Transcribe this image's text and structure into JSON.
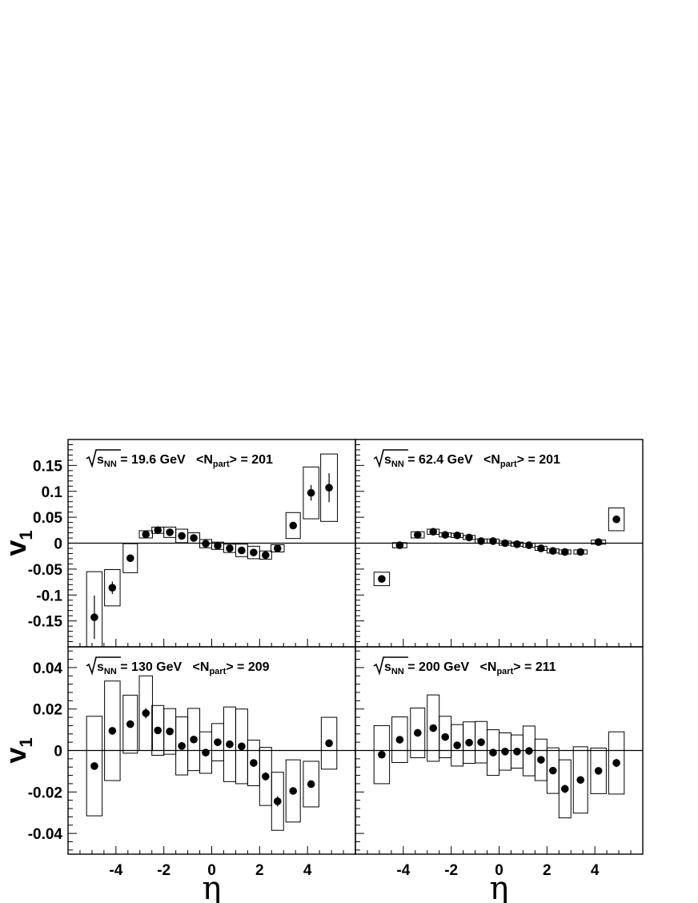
{
  "chart_data": [
    {
      "type": "scatter",
      "panel": "top-left",
      "energy_label": "= 19.6 GeV",
      "sqrt_label": "s",
      "sqrt_sub": "NN",
      "npart_open": "<N",
      "npart_sub": "part",
      "npart_close": "> = 201",
      "ylabel": "v",
      "ylabel_sub": "1",
      "xlabel": "",
      "ylim": [
        -0.2,
        0.2
      ],
      "yticks": [
        -0.15,
        -0.1,
        -0.05,
        0,
        0.05,
        0.1,
        0.15
      ],
      "ytick_labels": [
        "-0.15",
        "-0.1",
        "-0.05",
        "0",
        "0.05",
        "0.1",
        "0.15"
      ],
      "points": [
        {
          "x": -4.9,
          "y": -0.143,
          "err": 0.042,
          "sys": 0.088,
          "bw": 0.65
        },
        {
          "x": -4.15,
          "y": -0.086,
          "err": 0.012,
          "sys": 0.035,
          "bw": 0.65
        },
        {
          "x": -3.4,
          "y": -0.029,
          "err": 0.006,
          "sys": 0.028,
          "bw": 0.6
        },
        {
          "x": -2.75,
          "y": 0.017,
          "err": 0.003,
          "sys": 0.007,
          "bw": 0.55
        },
        {
          "x": -2.25,
          "y": 0.025,
          "err": 0.002,
          "sys": 0.006,
          "bw": 0.5
        },
        {
          "x": -1.75,
          "y": 0.021,
          "err": 0.002,
          "sys": 0.01,
          "bw": 0.5
        },
        {
          "x": -1.25,
          "y": 0.014,
          "err": 0.002,
          "sys": 0.013,
          "bw": 0.5
        },
        {
          "x": -0.75,
          "y": 0.01,
          "err": 0.002,
          "sys": 0.01,
          "bw": 0.5
        },
        {
          "x": -0.25,
          "y": -0.001,
          "err": 0.002,
          "sys": 0.008,
          "bw": 0.5
        },
        {
          "x": 0.25,
          "y": -0.005,
          "err": 0.002,
          "sys": 0.007,
          "bw": 0.5
        },
        {
          "x": 0.75,
          "y": -0.01,
          "err": 0.002,
          "sys": 0.008,
          "bw": 0.5
        },
        {
          "x": 1.25,
          "y": -0.014,
          "err": 0.002,
          "sys": 0.012,
          "bw": 0.5
        },
        {
          "x": 1.75,
          "y": -0.018,
          "err": 0.002,
          "sys": 0.012,
          "bw": 0.5
        },
        {
          "x": 2.25,
          "y": -0.023,
          "err": 0.002,
          "sys": 0.008,
          "bw": 0.5
        },
        {
          "x": 2.75,
          "y": -0.01,
          "err": 0.003,
          "sys": 0.007,
          "bw": 0.55
        },
        {
          "x": 3.4,
          "y": 0.034,
          "err": 0.006,
          "sys": 0.025,
          "bw": 0.6
        },
        {
          "x": 4.15,
          "y": 0.097,
          "err": 0.015,
          "sys": 0.05,
          "bw": 0.65
        },
        {
          "x": 4.9,
          "y": 0.107,
          "err": 0.028,
          "sys": 0.065,
          "bw": 0.7
        }
      ]
    },
    {
      "type": "scatter",
      "panel": "top-right",
      "energy_label": "= 62.4 GeV",
      "sqrt_label": "s",
      "sqrt_sub": "NN",
      "npart_open": "<N",
      "npart_sub": "part",
      "npart_close": "> = 201",
      "ylabel": "",
      "ylabel_sub": "",
      "xlabel": "",
      "ylim": [
        -0.2,
        0.2
      ],
      "yticks": [
        -0.15,
        -0.1,
        -0.05,
        0,
        0.05,
        0.1,
        0.15
      ],
      "ytick_labels": [],
      "points": [
        {
          "x": -4.9,
          "y": -0.069,
          "err": 0.006,
          "sys": 0.013,
          "bw": 0.65
        },
        {
          "x": -4.15,
          "y": -0.004,
          "err": 0.002,
          "sys": 0.005,
          "bw": 0.6
        },
        {
          "x": -3.4,
          "y": 0.016,
          "err": 0.002,
          "sys": 0.006,
          "bw": 0.55
        },
        {
          "x": -2.75,
          "y": 0.022,
          "err": 0.002,
          "sys": 0.005,
          "bw": 0.5
        },
        {
          "x": -2.25,
          "y": 0.016,
          "err": 0.002,
          "sys": 0.004,
          "bw": 0.5
        },
        {
          "x": -1.75,
          "y": 0.015,
          "err": 0.002,
          "sys": 0.004,
          "bw": 0.5
        },
        {
          "x": -1.25,
          "y": 0.011,
          "err": 0.002,
          "sys": 0.004,
          "bw": 0.5
        },
        {
          "x": -0.75,
          "y": 0.004,
          "err": 0.002,
          "sys": 0.004,
          "bw": 0.5
        },
        {
          "x": -0.25,
          "y": 0.004,
          "err": 0.002,
          "sys": 0.004,
          "bw": 0.5
        },
        {
          "x": 0.25,
          "y": 0.0,
          "err": 0.002,
          "sys": 0.004,
          "bw": 0.5
        },
        {
          "x": 0.75,
          "y": -0.002,
          "err": 0.002,
          "sys": 0.004,
          "bw": 0.5
        },
        {
          "x": 1.25,
          "y": -0.004,
          "err": 0.002,
          "sys": 0.004,
          "bw": 0.5
        },
        {
          "x": 1.75,
          "y": -0.01,
          "err": 0.002,
          "sys": 0.004,
          "bw": 0.5
        },
        {
          "x": 2.25,
          "y": -0.015,
          "err": 0.002,
          "sys": 0.004,
          "bw": 0.5
        },
        {
          "x": 2.75,
          "y": -0.017,
          "err": 0.002,
          "sys": 0.004,
          "bw": 0.5
        },
        {
          "x": 3.4,
          "y": -0.017,
          "err": 0.002,
          "sys": 0.004,
          "bw": 0.55
        },
        {
          "x": 4.15,
          "y": 0.002,
          "err": 0.002,
          "sys": 0.004,
          "bw": 0.6
        },
        {
          "x": 4.9,
          "y": 0.046,
          "err": 0.004,
          "sys": 0.022,
          "bw": 0.65
        }
      ]
    },
    {
      "type": "scatter",
      "panel": "bottom-left",
      "energy_label": "= 130 GeV",
      "sqrt_label": "s",
      "sqrt_sub": "NN",
      "npart_open": "<N",
      "npart_sub": "part",
      "npart_close": "> = 209",
      "ylabel": "v",
      "ylabel_sub": "1",
      "xlabel": "η",
      "ylim": [
        -0.05,
        0.05
      ],
      "yticks": [
        -0.04,
        -0.02,
        0,
        0.02,
        0.04
      ],
      "ytick_labels": [
        "-0.04",
        "-0.02",
        "0",
        "0.02",
        "0.04"
      ],
      "xticks": [
        -4,
        -2,
        0,
        2,
        4
      ],
      "xtick_labels": [
        "-4",
        "-2",
        "0",
        "2",
        "4"
      ],
      "points": [
        {
          "x": -4.9,
          "y": -0.0075,
          "err": 0.0015,
          "sys": 0.024,
          "bw": 0.65
        },
        {
          "x": -4.15,
          "y": 0.0095,
          "err": 0.0015,
          "sys": 0.024,
          "bw": 0.65
        },
        {
          "x": -3.4,
          "y": 0.0127,
          "err": 0.0015,
          "sys": 0.014,
          "bw": 0.6
        },
        {
          "x": -2.75,
          "y": 0.018,
          "err": 0.0025,
          "sys": 0.018,
          "bw": 0.55
        },
        {
          "x": -2.25,
          "y": 0.0097,
          "err": 0.0015,
          "sys": 0.012,
          "bw": 0.5
        },
        {
          "x": -1.75,
          "y": 0.0092,
          "err": 0.0015,
          "sys": 0.011,
          "bw": 0.5
        },
        {
          "x": -1.25,
          "y": 0.0022,
          "err": 0.0015,
          "sys": 0.014,
          "bw": 0.5
        },
        {
          "x": -0.75,
          "y": 0.0053,
          "err": 0.0018,
          "sys": 0.015,
          "bw": 0.5
        },
        {
          "x": -0.25,
          "y": -0.001,
          "err": 0.0018,
          "sys": 0.01,
          "bw": 0.5
        },
        {
          "x": 0.25,
          "y": 0.004,
          "err": 0.0018,
          "sys": 0.009,
          "bw": 0.5
        },
        {
          "x": 0.75,
          "y": 0.003,
          "err": 0.0018,
          "sys": 0.018,
          "bw": 0.5
        },
        {
          "x": 1.25,
          "y": 0.002,
          "err": 0.0018,
          "sys": 0.018,
          "bw": 0.5
        },
        {
          "x": 1.75,
          "y": -0.006,
          "err": 0.0018,
          "sys": 0.011,
          "bw": 0.5
        },
        {
          "x": 2.25,
          "y": -0.0125,
          "err": 0.002,
          "sys": 0.014,
          "bw": 0.5
        },
        {
          "x": 2.75,
          "y": -0.0245,
          "err": 0.0025,
          "sys": 0.014,
          "bw": 0.5
        },
        {
          "x": 3.4,
          "y": -0.0195,
          "err": 0.0015,
          "sys": 0.015,
          "bw": 0.6
        },
        {
          "x": 4.15,
          "y": -0.0162,
          "err": 0.0015,
          "sys": 0.011,
          "bw": 0.65
        },
        {
          "x": 4.9,
          "y": 0.0035,
          "err": 0.0018,
          "sys": 0.0125,
          "bw": 0.65
        }
      ]
    },
    {
      "type": "scatter",
      "panel": "bottom-right",
      "energy_label": "= 200 GeV",
      "sqrt_label": "s",
      "sqrt_sub": "NN",
      "npart_open": "<N",
      "npart_sub": "part",
      "npart_close": "> = 211",
      "ylabel": "",
      "ylabel_sub": "",
      "xlabel": "η",
      "ylim": [
        -0.05,
        0.05
      ],
      "yticks": [
        -0.04,
        -0.02,
        0,
        0.02,
        0.04
      ],
      "ytick_labels": [],
      "xticks": [
        -4,
        -2,
        0,
        2,
        4
      ],
      "xtick_labels": [
        "-4",
        "-2",
        "0",
        "2",
        "4"
      ],
      "points": [
        {
          "x": -4.9,
          "y": -0.002,
          "err": 0.0012,
          "sys": 0.014,
          "bw": 0.65
        },
        {
          "x": -4.15,
          "y": 0.0052,
          "err": 0.0012,
          "sys": 0.011,
          "bw": 0.65
        },
        {
          "x": -3.4,
          "y": 0.0085,
          "err": 0.0012,
          "sys": 0.012,
          "bw": 0.6
        },
        {
          "x": -2.75,
          "y": 0.0108,
          "err": 0.0012,
          "sys": 0.016,
          "bw": 0.5
        },
        {
          "x": -2.25,
          "y": 0.0065,
          "err": 0.0012,
          "sys": 0.01,
          "bw": 0.5
        },
        {
          "x": -1.75,
          "y": 0.0025,
          "err": 0.0012,
          "sys": 0.01,
          "bw": 0.5
        },
        {
          "x": -1.25,
          "y": 0.0038,
          "err": 0.0012,
          "sys": 0.01,
          "bw": 0.5
        },
        {
          "x": -0.75,
          "y": 0.004,
          "err": 0.0012,
          "sys": 0.01,
          "bw": 0.5
        },
        {
          "x": -0.25,
          "y": -0.001,
          "err": 0.0012,
          "sys": 0.011,
          "bw": 0.5
        },
        {
          "x": 0.25,
          "y": -0.0005,
          "err": 0.0015,
          "sys": 0.009,
          "bw": 0.5
        },
        {
          "x": 0.75,
          "y": -0.0005,
          "err": 0.0012,
          "sys": 0.008,
          "bw": 0.5
        },
        {
          "x": 1.25,
          "y": -0.0002,
          "err": 0.0012,
          "sys": 0.012,
          "bw": 0.5
        },
        {
          "x": 1.75,
          "y": -0.0045,
          "err": 0.0015,
          "sys": 0.01,
          "bw": 0.5
        },
        {
          "x": 2.25,
          "y": -0.0097,
          "err": 0.0012,
          "sys": 0.011,
          "bw": 0.5
        },
        {
          "x": 2.75,
          "y": -0.0185,
          "err": 0.002,
          "sys": 0.014,
          "bw": 0.5
        },
        {
          "x": 3.4,
          "y": -0.0142,
          "err": 0.0015,
          "sys": 0.016,
          "bw": 0.6
        },
        {
          "x": 4.15,
          "y": -0.0098,
          "err": 0.0012,
          "sys": 0.011,
          "bw": 0.65
        },
        {
          "x": 4.9,
          "y": -0.006,
          "err": 0.002,
          "sys": 0.015,
          "bw": 0.65
        }
      ]
    }
  ],
  "xlim": [
    -6,
    6
  ]
}
